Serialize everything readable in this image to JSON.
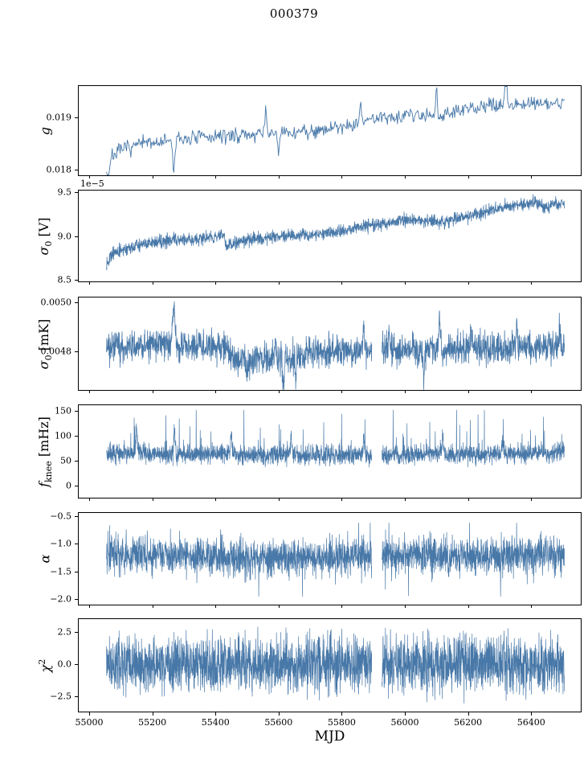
{
  "title": "000379",
  "xlabel": "MJD",
  "line_color": "#4878a8",
  "chart_data": {
    "type": "line",
    "x_range": [
      55055,
      56505
    ],
    "xlim": [
      54967,
      56557
    ],
    "xticks": [
      {
        "v": 55000,
        "label": "55000"
      },
      {
        "v": 55200,
        "label": "55200"
      },
      {
        "v": 55400,
        "label": "55400"
      },
      {
        "v": 55600,
        "label": "55600"
      },
      {
        "v": 55800,
        "label": "55800"
      },
      {
        "v": 56000,
        "label": "56000"
      },
      {
        "v": 56200,
        "label": "56200"
      },
      {
        "v": 56400,
        "label": "56400"
      }
    ],
    "panels": [
      {
        "key": "g",
        "ylabel": "g",
        "ylabel_html": "<i>g</i>",
        "offset_text": "",
        "ylim": [
          0.0179,
          0.0196
        ],
        "yticks": [
          {
            "v": 0.018,
            "label": "0.018"
          },
          {
            "v": 0.019,
            "label": "0.019"
          }
        ],
        "n_points": 640,
        "noise_sigma": 7e-05,
        "stroke_width": 0.9,
        "seed": 7,
        "gaps": [],
        "tail": null,
        "clamp": null,
        "trend": [
          [
            55055,
            0.01812
          ],
          [
            55075,
            0.01828
          ],
          [
            55110,
            0.0184
          ],
          [
            55160,
            0.01849
          ],
          [
            55210,
            0.01853
          ],
          [
            55260,
            0.01856
          ],
          [
            55310,
            0.0186
          ],
          [
            55360,
            0.01862
          ],
          [
            55410,
            0.01864
          ],
          [
            55460,
            0.01866
          ],
          [
            55510,
            0.01867
          ],
          [
            55560,
            0.01868
          ],
          [
            55610,
            0.0187
          ],
          [
            55660,
            0.01872
          ],
          [
            55710,
            0.01876
          ],
          [
            55760,
            0.01879
          ],
          [
            55810,
            0.01884
          ],
          [
            55860,
            0.01891
          ],
          [
            55910,
            0.01899
          ],
          [
            55960,
            0.01903
          ],
          [
            56010,
            0.01905
          ],
          [
            56060,
            0.01906
          ],
          [
            56110,
            0.01904
          ],
          [
            56160,
            0.01911
          ],
          [
            56210,
            0.01917
          ],
          [
            56260,
            0.01921
          ],
          [
            56310,
            0.01924
          ],
          [
            56360,
            0.01926
          ],
          [
            56410,
            0.01928
          ],
          [
            56460,
            0.01927
          ],
          [
            56505,
            0.0193
          ]
        ],
        "spikes": [
          [
            55060,
            -0.0006,
            4
          ],
          [
            55268,
            -0.00055,
            5
          ],
          [
            55560,
            0.0005,
            4
          ],
          [
            55600,
            -0.00035,
            4
          ],
          [
            55860,
            0.0004,
            4
          ],
          [
            56100,
            0.0005,
            4
          ],
          [
            56320,
            0.0011,
            4
          ]
        ]
      },
      {
        "key": "sigma0_V",
        "ylabel": "sigma0 [V]",
        "ylabel_html": "<i>σ</i><sub>0</sub> [V]",
        "offset_text": "1e−5",
        "ylim": [
          8.48,
          9.52
        ],
        "yticks": [
          {
            "v": 8.5,
            "label": "8.5"
          },
          {
            "v": 9.0,
            "label": "9.0"
          },
          {
            "v": 9.5,
            "label": "9.5"
          }
        ],
        "n_points": 2000,
        "noise_sigma": 0.035,
        "stroke_width": 0.8,
        "seed": 13,
        "gaps": [],
        "tail": null,
        "clamp": null,
        "trend": [
          [
            55055,
            8.7
          ],
          [
            55075,
            8.79
          ],
          [
            55110,
            8.85
          ],
          [
            55160,
            8.89
          ],
          [
            55210,
            8.93
          ],
          [
            55260,
            8.95
          ],
          [
            55310,
            8.96
          ],
          [
            55360,
            8.97
          ],
          [
            55410,
            8.99
          ],
          [
            55428,
            9.01
          ],
          [
            55434,
            8.88
          ],
          [
            55480,
            8.95
          ],
          [
            55530,
            8.97
          ],
          [
            55580,
            8.99
          ],
          [
            55630,
            9.0
          ],
          [
            55690,
            9.01
          ],
          [
            55750,
            9.03
          ],
          [
            55810,
            9.06
          ],
          [
            55860,
            9.1
          ],
          [
            55910,
            9.13
          ],
          [
            55960,
            9.16
          ],
          [
            56010,
            9.18
          ],
          [
            56060,
            9.17
          ],
          [
            56110,
            9.16
          ],
          [
            56160,
            9.19
          ],
          [
            56210,
            9.23
          ],
          [
            56260,
            9.28
          ],
          [
            56310,
            9.32
          ],
          [
            56360,
            9.36
          ],
          [
            56410,
            9.38
          ],
          [
            56440,
            9.34
          ],
          [
            56470,
            9.36
          ],
          [
            56505,
            9.37
          ]
        ],
        "spikes": [
          [
            55268,
            0.06,
            4
          ],
          [
            55150,
            0.05,
            3
          ]
        ]
      },
      {
        "key": "sigma0_mK",
        "ylabel": "sigma0 [mK]",
        "ylabel_html": "<i>σ</i><sub>0</sub> [mK]",
        "offset_text": "",
        "ylim": [
          0.00464,
          0.00502
        ],
        "yticks": [
          {
            "v": 0.0048,
            "label": "0.0048"
          },
          {
            "v": 0.005,
            "label": "0.0050"
          }
        ],
        "n_points": 2000,
        "noise_sigma": 3.2e-05,
        "stroke_width": 0.8,
        "seed": 21,
        "gaps": [
          [
            55895,
            55927
          ]
        ],
        "tail": null,
        "clamp": null,
        "trend": [
          [
            55055,
            0.00482
          ],
          [
            55150,
            0.00482
          ],
          [
            55250,
            0.004828
          ],
          [
            55350,
            0.004822
          ],
          [
            55432,
            0.00482
          ],
          [
            55448,
            0.004772
          ],
          [
            55520,
            0.004762
          ],
          [
            55600,
            0.004768
          ],
          [
            55660,
            0.004778
          ],
          [
            55720,
            0.004798
          ],
          [
            55800,
            0.004808
          ],
          [
            55900,
            0.004808
          ],
          [
            56000,
            0.004802
          ],
          [
            56100,
            0.004808
          ],
          [
            56200,
            0.004808
          ],
          [
            56300,
            0.004808
          ],
          [
            56400,
            0.004815
          ],
          [
            56505,
            0.004818
          ]
        ],
        "spikes": [
          [
            55268,
            0.00015,
            5
          ],
          [
            55285,
            -5e-05,
            3
          ],
          [
            55500,
            -7e-05,
            3
          ],
          [
            55590,
            0.0001,
            3
          ],
          [
            55615,
            -0.00013,
            3
          ],
          [
            55655,
            -8e-05,
            3
          ],
          [
            55870,
            0.0001,
            3
          ],
          [
            55950,
            7e-05,
            3
          ],
          [
            56060,
            -0.00012,
            3
          ],
          [
            56110,
            0.00013,
            3
          ],
          [
            56210,
            7e-05,
            3
          ],
          [
            56355,
            9e-05,
            3
          ],
          [
            56490,
            7e-05,
            3
          ]
        ]
      },
      {
        "key": "fknee",
        "ylabel": "fknee [mHz]",
        "ylabel_html": "<i>f</i><sub>knee</sub> [mHz]",
        "offset_text": "",
        "ylim": [
          -25,
          162
        ],
        "yticks": [
          {
            "v": 0,
            "label": "0"
          },
          {
            "v": 50,
            "label": "50"
          },
          {
            "v": 100,
            "label": "100"
          },
          {
            "v": 150,
            "label": "150"
          }
        ],
        "n_points": 2600,
        "noise_sigma": 9,
        "stroke_width": 0.7,
        "seed": 42,
        "gaps": [
          [
            55895,
            55927
          ]
        ],
        "tail": {
          "p": 0.07,
          "amp": 22,
          "dir": 1
        },
        "clamp": [
          32,
          152
        ],
        "trend": [
          [
            55055,
            62
          ],
          [
            55150,
            66
          ],
          [
            55250,
            63
          ],
          [
            55350,
            60
          ],
          [
            55430,
            65
          ],
          [
            55520,
            60
          ],
          [
            55620,
            62
          ],
          [
            55720,
            60
          ],
          [
            55820,
            62
          ],
          [
            55920,
            60
          ],
          [
            56020,
            61
          ],
          [
            56120,
            63
          ],
          [
            56220,
            60
          ],
          [
            56320,
            62
          ],
          [
            56420,
            64
          ],
          [
            56505,
            65
          ]
        ],
        "spikes": [
          [
            55150,
            45,
            3
          ],
          [
            55270,
            45,
            3
          ],
          [
            55450,
            35,
            3
          ],
          [
            55640,
            40,
            3
          ],
          [
            55870,
            35,
            3
          ],
          [
            56120,
            40,
            3
          ],
          [
            56310,
            35,
            3
          ]
        ]
      },
      {
        "key": "alpha",
        "ylabel": "alpha",
        "ylabel_html": "<i>α</i>",
        "offset_text": "",
        "ylim": [
          -2.1,
          -0.44
        ],
        "yticks": [
          {
            "v": -2.0,
            "label": "−2.0"
          },
          {
            "v": -1.5,
            "label": "−1.5"
          },
          {
            "v": -1.0,
            "label": "−1.0"
          },
          {
            "v": -0.5,
            "label": "−0.5"
          }
        ],
        "n_points": 2600,
        "noise_sigma": 0.16,
        "stroke_width": 0.7,
        "seed": 77,
        "gaps": [
          [
            55895,
            55927
          ]
        ],
        "tail": {
          "p": 0.05,
          "amp": 0.22,
          "dir": 0
        },
        "clamp": [
          -1.95,
          -0.62
        ],
        "trend": [
          [
            55055,
            -1.18
          ],
          [
            55150,
            -1.22
          ],
          [
            55250,
            -1.2
          ],
          [
            55350,
            -1.23
          ],
          [
            55450,
            -1.26
          ],
          [
            55550,
            -1.28
          ],
          [
            55650,
            -1.26
          ],
          [
            55750,
            -1.23
          ],
          [
            55850,
            -1.21
          ],
          [
            55950,
            -1.23
          ],
          [
            56050,
            -1.21
          ],
          [
            56150,
            -1.23
          ],
          [
            56250,
            -1.23
          ],
          [
            56350,
            -1.21
          ],
          [
            56450,
            -1.21
          ],
          [
            56505,
            -1.2
          ]
        ],
        "spikes": []
      },
      {
        "key": "chi2",
        "ylabel": "chi2",
        "ylabel_html": "<i>χ</i><sup>2</sup>",
        "offset_text": "",
        "ylim": [
          -3.7,
          3.5
        ],
        "yticks": [
          {
            "v": -2.5,
            "label": "−2.5"
          },
          {
            "v": 0.0,
            "label": "0.0"
          },
          {
            "v": 2.5,
            "label": "2.5"
          }
        ],
        "n_points": 2800,
        "noise_sigma": 1.05,
        "stroke_width": 0.7,
        "seed": 99,
        "gaps": [
          [
            55895,
            55927
          ]
        ],
        "tail": {
          "p": 0.04,
          "amp": 0.5,
          "dir": 0
        },
        "clamp": null,
        "trend": [
          [
            55055,
            0
          ],
          [
            56505,
            0
          ]
        ],
        "spikes": []
      }
    ]
  }
}
